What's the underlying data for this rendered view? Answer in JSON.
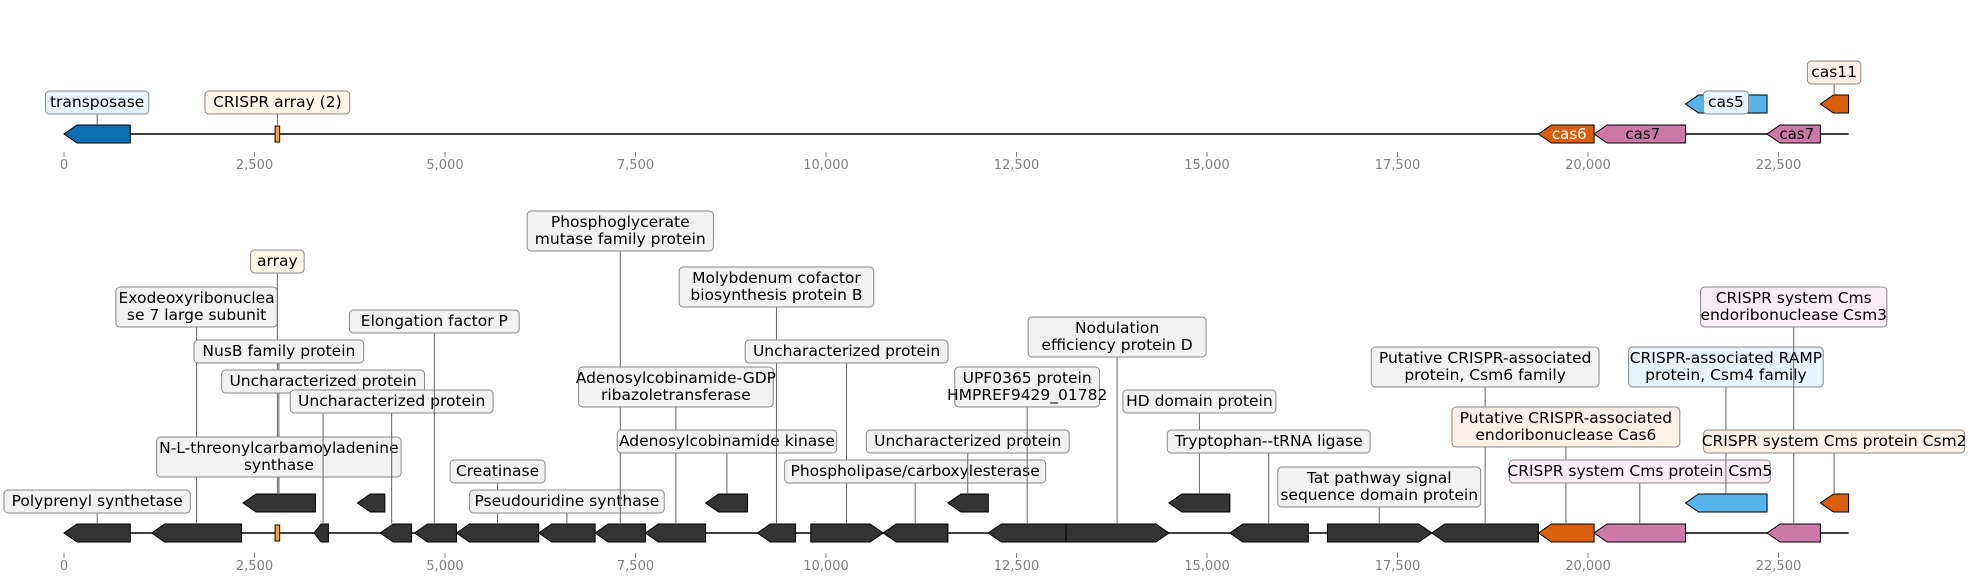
{
  "colors": {
    "transposase": "#0a6fb0",
    "crispr": "#f5a623",
    "cas6": "#d95f0e",
    "cas7": "#cc79a7",
    "cas5": "#56b4e9",
    "cas11": "#d95f0e",
    "other": "#333333",
    "axis": "#808080",
    "leader": "#666666"
  },
  "tracks": [
    {
      "id": "summary",
      "ticks": [
        "0",
        "2,500",
        "5,000",
        "7,500",
        "10,000",
        "12,500",
        "15,000",
        "17,500",
        "20,000",
        "22,500"
      ],
      "tick_values": [
        0,
        2500,
        5000,
        7500,
        10000,
        12500,
        15000,
        17500,
        20000,
        22500
      ],
      "genes": [
        {
          "start": 0,
          "end": 870,
          "strand": -1,
          "color": "transposase",
          "lane": 0
        },
        {
          "start": 2770,
          "end": 2830,
          "strand": 0,
          "color": "crispr",
          "lane": 0
        },
        {
          "start": 19350,
          "end": 20080,
          "strand": -1,
          "color": "cas6",
          "lane": 0,
          "inside": "cas6"
        },
        {
          "start": 20080,
          "end": 21280,
          "strand": -1,
          "color": "cas7",
          "lane": 0,
          "inside": "cas7"
        },
        {
          "start": 21280,
          "end": 22350,
          "strand": -1,
          "color": "cas5",
          "lane": 1
        },
        {
          "start": 22350,
          "end": 23050,
          "strand": -1,
          "color": "cas7",
          "lane": 0,
          "inside": "cas7"
        },
        {
          "start": 23050,
          "end": 23420,
          "strand": -1,
          "color": "cas11",
          "lane": 1
        }
      ],
      "labels": [
        {
          "text": "transposase",
          "pos": 435,
          "level": 0,
          "bg": "#e8f4fb"
        },
        {
          "text": "CRISPR array (2)",
          "pos": 2800,
          "level": 0,
          "bg": "#fff7e6"
        },
        {
          "text": "cas5",
          "pos": 21810,
          "level": 0,
          "bg": "#e8f4fb",
          "anchor": "gene"
        },
        {
          "text": "cas11",
          "pos": 23230,
          "level": 1,
          "bg": "#fdf0e6",
          "anchor": "gene"
        }
      ]
    },
    {
      "id": "detail",
      "ticks": [
        "0",
        "2,500",
        "5,000",
        "7,500",
        "10,000",
        "12,500",
        "15,000",
        "17,500",
        "20,000",
        "22,500"
      ],
      "tick_values": [
        0,
        2500,
        5000,
        7500,
        10000,
        12500,
        15000,
        17500,
        20000,
        22500
      ],
      "genes": [
        {
          "start": 0,
          "end": 870,
          "strand": -1,
          "color": "other",
          "lane": 0
        },
        {
          "start": 1150,
          "end": 2330,
          "strand": -1,
          "color": "other",
          "lane": 0
        },
        {
          "start": 2350,
          "end": 3300,
          "strand": -1,
          "color": "other",
          "lane": 1
        },
        {
          "start": 2770,
          "end": 2830,
          "strand": 0,
          "color": "crispr",
          "lane": 0
        },
        {
          "start": 3280,
          "end": 3470,
          "strand": -1,
          "color": "other",
          "lane": 0
        },
        {
          "start": 3850,
          "end": 4210,
          "strand": -1,
          "color": "other",
          "lane": 1
        },
        {
          "start": 4150,
          "end": 4560,
          "strand": -1,
          "color": "other",
          "lane": 0
        },
        {
          "start": 4600,
          "end": 5150,
          "strand": -1,
          "color": "other",
          "lane": 0
        },
        {
          "start": 5150,
          "end": 6230,
          "strand": -1,
          "color": "other",
          "lane": 0
        },
        {
          "start": 6230,
          "end": 6970,
          "strand": -1,
          "color": "other",
          "lane": 0
        },
        {
          "start": 6970,
          "end": 7630,
          "strand": -1,
          "color": "other",
          "lane": 0
        },
        {
          "start": 7630,
          "end": 8420,
          "strand": -1,
          "color": "other",
          "lane": 0
        },
        {
          "start": 8420,
          "end": 8970,
          "strand": -1,
          "color": "other",
          "lane": 1
        },
        {
          "start": 9100,
          "end": 9600,
          "strand": -1,
          "color": "other",
          "lane": 0
        },
        {
          "start": 9800,
          "end": 10750,
          "strand": 1,
          "color": "other",
          "lane": 0
        },
        {
          "start": 10750,
          "end": 11600,
          "strand": -1,
          "color": "other",
          "lane": 0
        },
        {
          "start": 11600,
          "end": 12130,
          "strand": -1,
          "color": "other",
          "lane": 1
        },
        {
          "start": 12130,
          "end": 13150,
          "strand": -1,
          "color": "other",
          "lane": 0
        },
        {
          "start": 13150,
          "end": 14500,
          "strand": 1,
          "color": "other",
          "lane": 0
        },
        {
          "start": 14500,
          "end": 15300,
          "strand": -1,
          "color": "other",
          "lane": 1
        },
        {
          "start": 15300,
          "end": 16330,
          "strand": -1,
          "color": "other",
          "lane": 0
        },
        {
          "start": 16580,
          "end": 17950,
          "strand": 1,
          "color": "other",
          "lane": 0
        },
        {
          "start": 17950,
          "end": 19350,
          "strand": -1,
          "color": "other",
          "lane": 0
        },
        {
          "start": 19350,
          "end": 20080,
          "strand": -1,
          "color": "cas6",
          "lane": 0
        },
        {
          "start": 20080,
          "end": 21280,
          "strand": -1,
          "color": "cas7",
          "lane": 0
        },
        {
          "start": 21280,
          "end": 22350,
          "strand": -1,
          "color": "cas5",
          "lane": 1
        },
        {
          "start": 22350,
          "end": 23050,
          "strand": -1,
          "color": "cas7",
          "lane": 0
        },
        {
          "start": 23050,
          "end": 23420,
          "strand": -1,
          "color": "cas11",
          "lane": 1
        }
      ],
      "labels": [
        {
          "text": "Polyprenyl synthetase",
          "pos": 435,
          "level": 0,
          "bg": "#f2f2f2"
        },
        {
          "text": "Exodeoxyribonuclea\nse 7 large subunit",
          "pos": 1740,
          "level": 6,
          "bg": "#f2f2f2"
        },
        {
          "text": "array",
          "pos": 2800,
          "level": 8,
          "bg": "#fff7e6"
        },
        {
          "text": "NusB family protein",
          "pos": 2820,
          "level": 5,
          "bg": "#f2f2f2"
        },
        {
          "text": "N-L-threonylcarbamoyladenine\nsynthase",
          "pos": 2820,
          "level": 1,
          "bg": "#f2f2f2"
        },
        {
          "text": "Uncharacterized protein",
          "pos": 3400,
          "level": 4,
          "bg": "#f2f2f2"
        },
        {
          "text": "Uncharacterized protein",
          "pos": 4300,
          "level": 3,
          "bg": "#f2f2f2"
        },
        {
          "text": "Elongation factor P",
          "pos": 4860,
          "level": 6,
          "bg": "#f2f2f2"
        },
        {
          "text": "Creatinase",
          "pos": 5690,
          "level": 1,
          "bg": "#f2f2f2"
        },
        {
          "text": "Pseudouridine synthase",
          "pos": 6600,
          "level": 0,
          "bg": "#f2f2f2"
        },
        {
          "text": "Phosphoglycerate\nmutase family protein",
          "pos": 7300,
          "level": 9,
          "bg": "#f2f2f2"
        },
        {
          "text": "Adenosylcobinamide-GDP\nribazoletransferase",
          "pos": 8030,
          "level": 3,
          "bg": "#f2f2f2"
        },
        {
          "text": "Adenosylcobinamide kinase",
          "pos": 8700,
          "level": 2,
          "bg": "#f2f2f2",
          "anchor": "gene"
        },
        {
          "text": "Molybdenum cofactor\nbiosynthesis protein B",
          "pos": 9350,
          "level": 7,
          "bg": "#f2f2f2"
        },
        {
          "text": "Uncharacterized protein",
          "pos": 10270,
          "level": 5,
          "bg": "#f2f2f2"
        },
        {
          "text": "Phospholipase/carboxylesterase",
          "pos": 11170,
          "level": 1,
          "bg": "#f2f2f2"
        },
        {
          "text": "Uncharacterized protein",
          "pos": 11860,
          "level": 2,
          "bg": "#f2f2f2",
          "anchor": "gene"
        },
        {
          "text": "UPF0365 protein\nHMPREF9429_01782",
          "pos": 12640,
          "level": 3,
          "bg": "#f2f2f2"
        },
        {
          "text": "Nodulation\nefficiency protein D",
          "pos": 13820,
          "level": 5,
          "bg": "#f2f2f2"
        },
        {
          "text": "HD domain protein",
          "pos": 14900,
          "level": 3,
          "bg": "#f2f2f2",
          "anchor": "gene"
        },
        {
          "text": "Tryptophan--tRNA ligase",
          "pos": 15810,
          "level": 2,
          "bg": "#f2f2f2"
        },
        {
          "text": "Tat pathway signal\nsequence domain protein",
          "pos": 17260,
          "level": 0,
          "bg": "#f2f2f2"
        },
        {
          "text": "Putative CRISPR-associated\nprotein, Csm6 family",
          "pos": 18650,
          "level": 4,
          "bg": "#f2f2f2"
        },
        {
          "text": "Putative CRISPR-associated\nendoribonuclease Cas6",
          "pos": 19710,
          "level": 2,
          "bg": "#fdf0e6"
        },
        {
          "text": "CRISPR system Cms protein Csm5",
          "pos": 20680,
          "level": 1,
          "bg": "#f9eef5"
        },
        {
          "text": "CRISPR-associated RAMP\nprotein, Csm4 family",
          "pos": 21810,
          "level": 4,
          "bg": "#e8f4fb",
          "anchor": "gene"
        },
        {
          "text": "CRISPR system Cms\nendoribonuclease Csm3",
          "pos": 22700,
          "level": 6,
          "bg": "#f9eef5"
        },
        {
          "text": "CRISPR system Cms protein Csm2",
          "pos": 23230,
          "level": 2,
          "bg": "#fdf0e6",
          "anchor": "gene"
        }
      ]
    }
  ]
}
